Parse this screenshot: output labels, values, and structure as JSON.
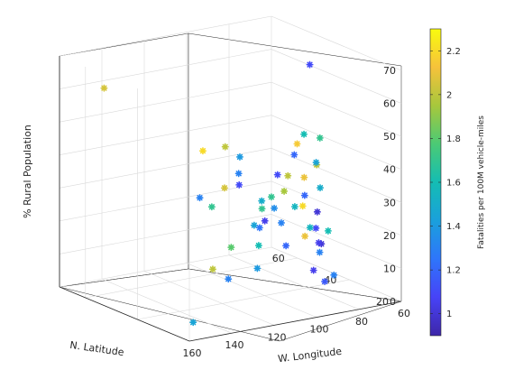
{
  "chart_data": {
    "type": "scatter3",
    "xlabel": "W. Longitude",
    "ylabel": "N. Latitude",
    "zlabel": "% Rural Population",
    "colorbar_label": "Fatalities per 100M vehicle-miles",
    "xlim": [
      60,
      160
    ],
    "ylim": [
      20,
      70
    ],
    "zlim": [
      0,
      70
    ],
    "clim": [
      0.9,
      2.3
    ],
    "grid": true,
    "colormap": "parula",
    "x_ticks": [
      "60",
      "80",
      "100",
      "120",
      "140",
      "160"
    ],
    "y_ticks": [
      "20",
      "40",
      "60"
    ],
    "z_ticks": [
      "0",
      "10",
      "20",
      "30",
      "40",
      "50",
      "60",
      "70"
    ],
    "colorbar_ticks": [
      "1",
      "1.2",
      "1.4",
      "1.6",
      "1.8",
      "2",
      "2.2"
    ],
    "points": [
      {
        "x": 150,
        "y": 61,
        "z": 62,
        "c": 2.05
      },
      {
        "x": 112,
        "y": 33,
        "z": 12,
        "c": 1.4
      },
      {
        "x": 92,
        "y": 34,
        "z": 47,
        "c": 2.15
      },
      {
        "x": 122,
        "y": 36,
        "z": 9,
        "c": 1.3
      },
      {
        "x": 104,
        "y": 39,
        "z": 16,
        "c": 1.6
      },
      {
        "x": 72,
        "y": 41,
        "z": 12,
        "c": 1.0
      },
      {
        "x": 75,
        "y": 39,
        "z": 30,
        "c": 1.5
      },
      {
        "x": 82,
        "y": 28,
        "z": 8,
        "c": 1.3
      },
      {
        "x": 84,
        "y": 33,
        "z": 40,
        "c": 2.0
      },
      {
        "x": 114,
        "y": 44,
        "z": 33,
        "c": 2.05
      },
      {
        "x": 89,
        "y": 40,
        "z": 35,
        "c": 2.0
      },
      {
        "x": 86,
        "y": 40,
        "z": 41,
        "c": 1.2
      },
      {
        "x": 93,
        "y": 42,
        "z": 25,
        "c": 1.35
      },
      {
        "x": 98,
        "y": 39,
        "z": 30,
        "c": 1.7
      },
      {
        "x": 85,
        "y": 37,
        "z": 35,
        "c": 2.1
      },
      {
        "x": 92,
        "y": 31,
        "z": 20,
        "c": 2.1
      },
      {
        "x": 69,
        "y": 45,
        "z": 20,
        "c": 1.0
      },
      {
        "x": 77,
        "y": 39,
        "z": 18,
        "c": 1.1
      },
      {
        "x": 72,
        "y": 42,
        "z": 12,
        "c": 1.05
      },
      {
        "x": 85,
        "y": 44,
        "z": 12,
        "c": 1.2
      },
      {
        "x": 94,
        "y": 46,
        "z": 26,
        "c": 1.5
      },
      {
        "x": 90,
        "y": 33,
        "z": 50,
        "c": 1.6
      },
      {
        "x": 92,
        "y": 39,
        "z": 31,
        "c": 1.95
      },
      {
        "x": 110,
        "y": 47,
        "z": 44,
        "c": 2.0
      },
      {
        "x": 100,
        "y": 41,
        "z": 26,
        "c": 1.7
      },
      {
        "x": 117,
        "y": 39,
        "z": 17,
        "c": 1.8
      },
      {
        "x": 72,
        "y": 43,
        "z": 36,
        "c": 1.45
      },
      {
        "x": 74,
        "y": 40,
        "z": 10,
        "c": 1.3
      },
      {
        "x": 106,
        "y": 35,
        "z": 25,
        "c": 1.05
      },
      {
        "x": 75,
        "y": 43,
        "z": 66,
        "c": 1.1
      },
      {
        "x": 80,
        "y": 35,
        "z": 47,
        "c": 1.7
      },
      {
        "x": 82,
        "y": 40,
        "z": 25,
        "c": 2.2
      },
      {
        "x": 97,
        "y": 36,
        "z": 23,
        "c": 1.3
      },
      {
        "x": 100,
        "y": 44,
        "z": 20,
        "c": 1.45
      },
      {
        "x": 86,
        "y": 36,
        "z": 30,
        "c": 1.2
      },
      {
        "x": 81,
        "y": 38,
        "z": 19,
        "c": 1.55
      },
      {
        "x": 98,
        "y": 30,
        "z": 30,
        "c": 1.55
      },
      {
        "x": 89,
        "y": 44,
        "z": 34,
        "c": 1.1
      },
      {
        "x": 111,
        "y": 41,
        "z": 38,
        "c": 1.3
      },
      {
        "x": 120,
        "y": 44,
        "z": 28,
        "c": 1.7
      },
      {
        "x": 108,
        "y": 43,
        "z": 42,
        "c": 1.4
      },
      {
        "x": 112,
        "y": 40,
        "z": 35,
        "c": 1.1
      },
      {
        "x": 123,
        "y": 45,
        "z": 45,
        "c": 2.2
      },
      {
        "x": 122,
        "y": 47,
        "z": 30,
        "c": 1.3
      },
      {
        "x": 95,
        "y": 46,
        "z": 18,
        "c": 1.25
      },
      {
        "x": 122,
        "y": 42,
        "z": 10,
        "c": 2.0
      },
      {
        "x": 90,
        "y": 25,
        "z": 8,
        "c": 1.15
      },
      {
        "x": 72,
        "y": 44,
        "z": 3,
        "c": 1.05
      },
      {
        "x": 70,
        "y": 40,
        "z": 16,
        "c": 1.6
      },
      {
        "x": 157,
        "y": 21,
        "z": 5,
        "c": 1.45
      }
    ]
  }
}
